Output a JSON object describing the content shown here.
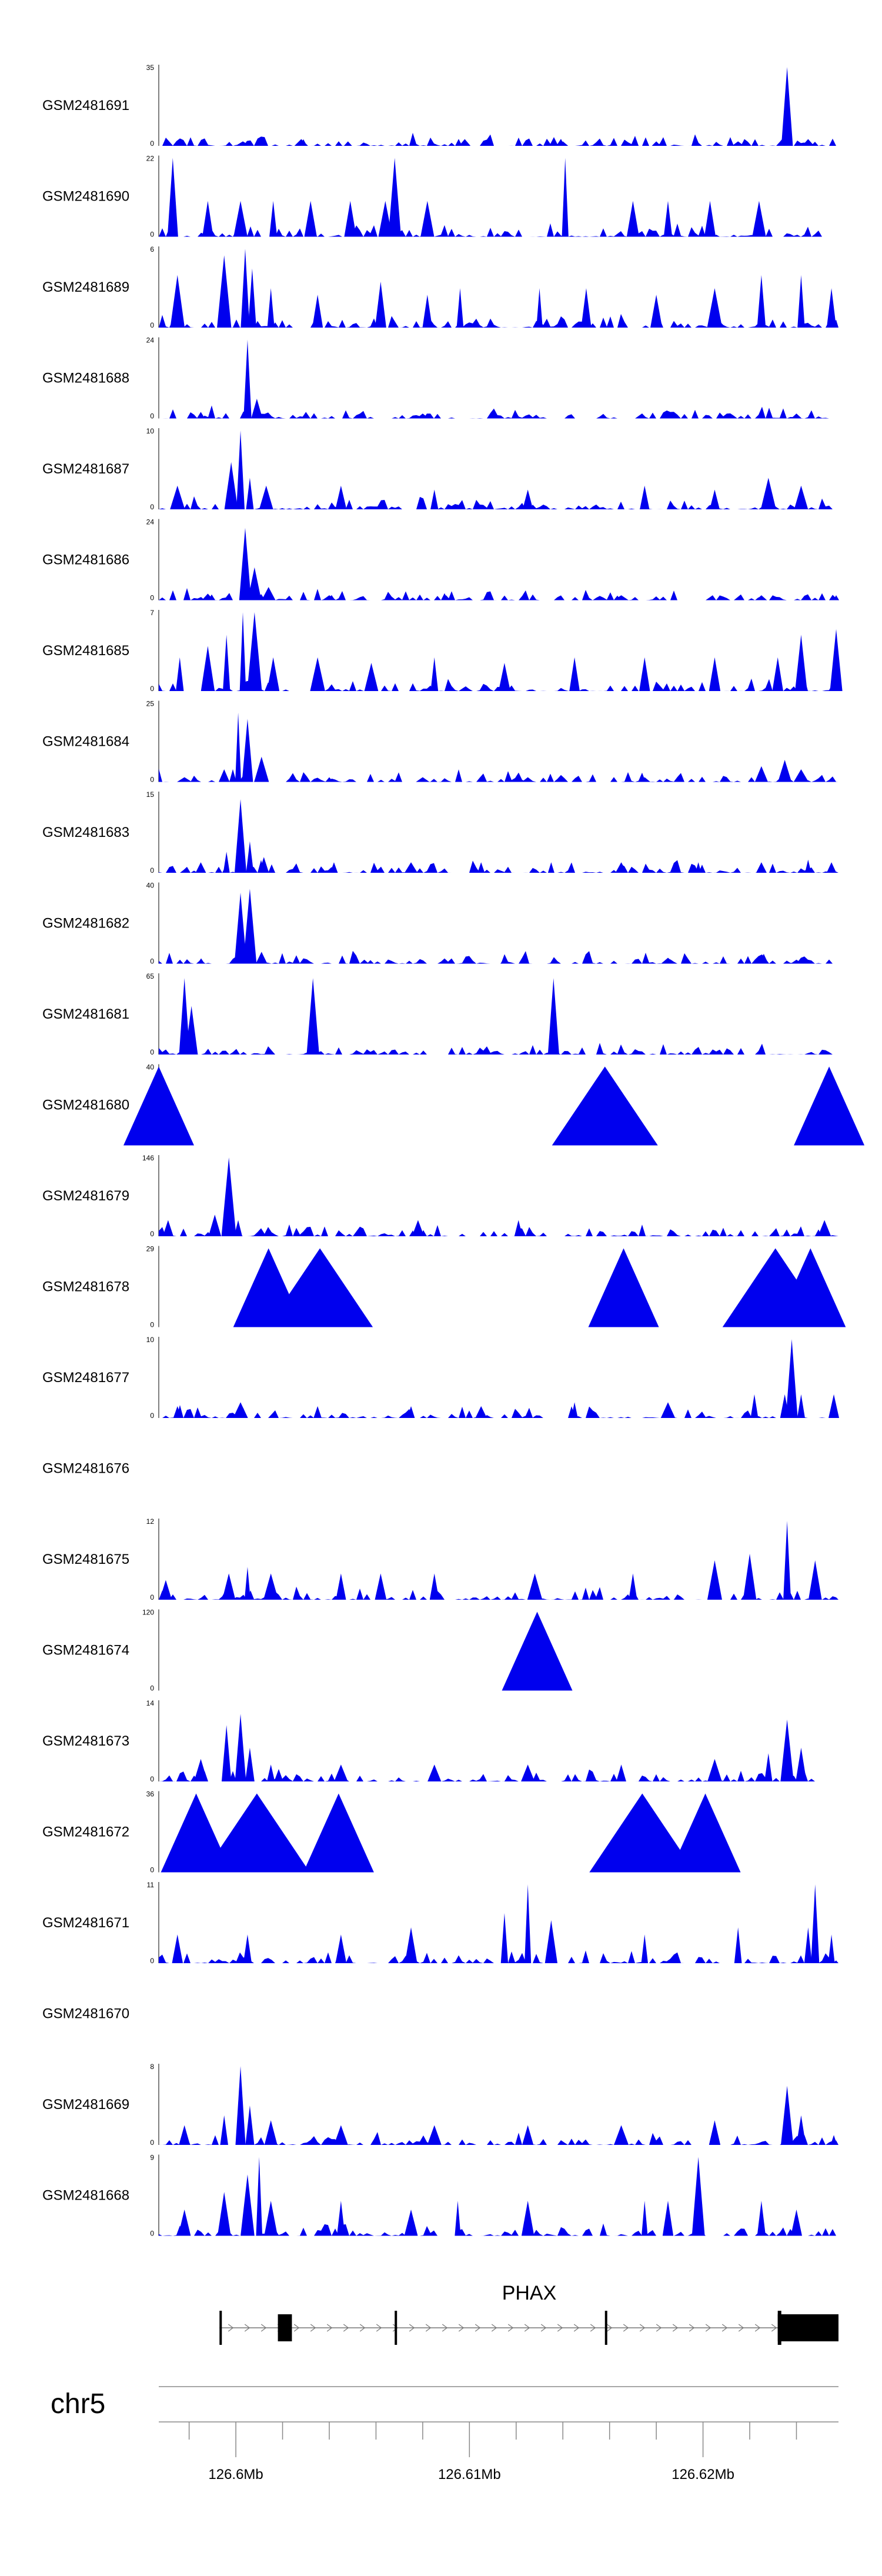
{
  "chart_data": {
    "type": "area",
    "title": "",
    "chromosome": "chr5",
    "xlabel": "",
    "ylabel": "",
    "xlim": [
      126.5967,
      126.6258
    ],
    "x_unit": "Mb",
    "x_ticks": [
      {
        "value": 126.6,
        "label": "126.6Mb"
      },
      {
        "value": 126.61,
        "label": "126.61Mb"
      },
      {
        "value": 126.62,
        "label": "126.62Mb"
      }
    ],
    "grid": false,
    "legend": "none",
    "fill_color": "#0000ee",
    "gene": {
      "name": "PHAX",
      "exons": [
        [
          126.5993,
          126.5994
        ],
        [
          126.6018,
          126.6024
        ],
        [
          126.6068,
          126.6069
        ],
        [
          126.6158,
          126.6159
        ],
        [
          126.6232,
          126.6258
        ]
      ]
    },
    "tracks": [
      {
        "name": "GSM2481691",
        "ymax_label": "35",
        "ymin_label": "0",
        "ymax": 35,
        "peaks": [
          [
            126.6003,
            2
          ],
          [
            126.6028,
            3
          ],
          [
            126.6048,
            2
          ],
          [
            126.6098,
            3
          ],
          [
            126.614,
            2
          ],
          [
            126.618,
            2
          ],
          [
            126.6215,
            2
          ],
          [
            126.6236,
            35
          ],
          [
            126.6245,
            3
          ]
        ]
      },
      {
        "name": "GSM2481690",
        "ymax_label": "22",
        "ymin_label": "0",
        "ymax": 22,
        "peaks": [
          [
            126.5973,
            22
          ],
          [
            126.5988,
            10
          ],
          [
            126.6002,
            10
          ],
          [
            126.6016,
            10
          ],
          [
            126.6032,
            10
          ],
          [
            126.6049,
            10
          ],
          [
            126.6064,
            10
          ],
          [
            126.6068,
            22
          ],
          [
            126.6082,
            10
          ],
          [
            126.6141,
            22
          ],
          [
            126.617,
            10
          ],
          [
            126.6185,
            10
          ],
          [
            126.6203,
            10
          ],
          [
            126.6224,
            10
          ]
        ]
      },
      {
        "name": "GSM2481689",
        "ymax_label": "6",
        "ymin_label": "0",
        "ymax": 6,
        "peaks": [
          [
            126.5975,
            4
          ],
          [
            126.5995,
            5.5
          ],
          [
            126.6004,
            6
          ],
          [
            126.6007,
            4.5
          ],
          [
            126.6015,
            3
          ],
          [
            126.6035,
            2.5
          ],
          [
            126.6062,
            3.5
          ],
          [
            126.6082,
            2.5
          ],
          [
            126.6096,
            3
          ],
          [
            126.613,
            3
          ],
          [
            126.615,
            3
          ],
          [
            126.618,
            2.5
          ],
          [
            126.6205,
            3
          ],
          [
            126.6225,
            4
          ],
          [
            126.6242,
            4
          ],
          [
            126.6255,
            3
          ]
        ]
      },
      {
        "name": "GSM2481688",
        "ymax_label": "24",
        "ymin_label": "0",
        "ymax": 24,
        "peaks": [
          [
            126.5985,
            2
          ],
          [
            126.6005,
            24
          ],
          [
            126.6009,
            6
          ],
          [
            126.603,
            2
          ],
          [
            126.608,
            1.5
          ],
          [
            126.612,
            1.5
          ],
          [
            126.6185,
            1.5
          ],
          [
            126.624,
            1.5
          ]
        ]
      },
      {
        "name": "GSM2481687",
        "ymax_label": "10",
        "ymin_label": "0",
        "ymax": 10,
        "peaks": [
          [
            126.5975,
            3
          ],
          [
            126.5998,
            6
          ],
          [
            126.6002,
            10
          ],
          [
            126.6006,
            4
          ],
          [
            126.6013,
            3
          ],
          [
            126.6045,
            3
          ],
          [
            126.6085,
            2.5
          ],
          [
            126.6125,
            2.5
          ],
          [
            126.6175,
            3
          ],
          [
            126.6205,
            2.5
          ],
          [
            126.6228,
            4
          ],
          [
            126.6242,
            3
          ]
        ]
      },
      {
        "name": "GSM2481686",
        "ymax_label": "24",
        "ymin_label": "0",
        "ymax": 24,
        "peaks": [
          [
            126.5988,
            2
          ],
          [
            126.6004,
            22
          ],
          [
            126.6008,
            10
          ],
          [
            126.6014,
            4
          ],
          [
            126.604,
            1.5
          ],
          [
            126.609,
            1.5
          ],
          [
            126.6165,
            1.5
          ],
          [
            126.6225,
            1.5
          ],
          [
            126.6257,
            1.5
          ]
        ]
      },
      {
        "name": "GSM2481685",
        "ymax_label": "7",
        "ymin_label": "0",
        "ymax": 7,
        "peaks": [
          [
            126.5976,
            3
          ],
          [
            126.5988,
            4
          ],
          [
            126.5996,
            5
          ],
          [
            126.6003,
            7
          ],
          [
            126.6008,
            7
          ],
          [
            126.6016,
            3
          ],
          [
            126.6035,
            3
          ],
          [
            126.6058,
            2.5
          ],
          [
            126.6085,
            3
          ],
          [
            126.6115,
            2.5
          ],
          [
            126.6145,
            3
          ],
          [
            126.6175,
            3
          ],
          [
            126.6205,
            3
          ],
          [
            126.6232,
            3
          ],
          [
            126.6242,
            5
          ],
          [
            126.6257,
            5.5
          ]
        ]
      },
      {
        "name": "GSM2481684",
        "ymax_label": "25",
        "ymin_label": "0",
        "ymax": 25,
        "peaks": [
          [
            126.5978,
            1.5
          ],
          [
            126.5995,
            4
          ],
          [
            126.6001,
            22
          ],
          [
            126.6005,
            20
          ],
          [
            126.6011,
            8
          ],
          [
            126.604,
            1.5
          ],
          [
            126.608,
            1.5
          ],
          [
            126.6125,
            1.5
          ],
          [
            126.6175,
            1.5
          ],
          [
            126.6225,
            5
          ],
          [
            126.6235,
            7
          ],
          [
            126.6242,
            4
          ]
        ]
      },
      {
        "name": "GSM2481683",
        "ymax_label": "15",
        "ymin_label": "0",
        "ymax": 15,
        "peaks": [
          [
            126.5985,
            2
          ],
          [
            126.5996,
            4
          ],
          [
            126.6002,
            14
          ],
          [
            126.6006,
            6
          ],
          [
            126.6012,
            3
          ],
          [
            126.6042,
            2
          ],
          [
            126.6075,
            2
          ],
          [
            126.6105,
            2
          ],
          [
            126.6135,
            2
          ],
          [
            126.6165,
            2
          ],
          [
            126.6198,
            2
          ],
          [
            126.6225,
            2
          ],
          [
            126.6245,
            2.5
          ],
          [
            126.6255,
            2
          ]
        ]
      },
      {
        "name": "GSM2481682",
        "ymax_label": "40",
        "ymin_label": "0",
        "ymax": 40,
        "peaks": [
          [
            126.5985,
            2
          ],
          [
            126.6002,
            36
          ],
          [
            126.6006,
            38
          ],
          [
            126.6011,
            6
          ],
          [
            126.6055,
            2
          ],
          [
            126.6115,
            3
          ],
          [
            126.6185,
            3
          ],
          [
            126.6226,
            5
          ],
          [
            126.624,
            2
          ]
        ]
      },
      {
        "name": "GSM2481681",
        "ymax_label": "65",
        "ymin_label": "0",
        "ymax": 65,
        "peaks": [
          [
            126.5978,
            63
          ],
          [
            126.5981,
            40
          ],
          [
            126.6033,
            63
          ],
          [
            126.6136,
            63
          ]
        ]
      },
      {
        "name": "GSM2481680",
        "ymax_label": "40",
        "ymin_label": "0",
        "ymax": 40,
        "peaks": [
          [
            126.5967,
            40
          ],
          [
            126.6158,
            40
          ],
          [
            126.6254,
            40
          ]
        ]
      },
      {
        "name": "GSM2481679",
        "ymax_label": "146",
        "ymin_label": "0",
        "ymax": 146,
        "peaks": [
          [
            126.5971,
            30
          ],
          [
            126.5991,
            40
          ],
          [
            126.5997,
            146
          ],
          [
            126.6001,
            30
          ],
          [
            126.6078,
            30
          ],
          [
            126.6121,
            30
          ],
          [
            126.6252,
            30
          ]
        ]
      },
      {
        "name": "GSM2481678",
        "ymax_label": "29",
        "ymin_label": "0",
        "ymax": 29,
        "peaks": [
          [
            126.6014,
            29
          ],
          [
            126.6036,
            29
          ],
          [
            126.6166,
            29
          ],
          [
            126.6231,
            29
          ],
          [
            126.6246,
            29
          ]
        ]
      },
      {
        "name": "GSM2481677",
        "ymax_label": "10",
        "ymin_label": "0",
        "ymax": 10,
        "peaks": [
          [
            126.5975,
            1.5
          ],
          [
            126.6002,
            2
          ],
          [
            126.6035,
            1.5
          ],
          [
            126.6075,
            1.5
          ],
          [
            126.6105,
            1.5
          ],
          [
            126.6145,
            2
          ],
          [
            126.6185,
            2
          ],
          [
            126.6222,
            3
          ],
          [
            126.6235,
            3
          ],
          [
            126.6238,
            10
          ],
          [
            126.6242,
            3
          ],
          [
            126.6256,
            3
          ]
        ]
      },
      {
        "name": "GSM2481676",
        "ymax_label": "",
        "ymin_label": "",
        "ymax": 1,
        "peaks": []
      },
      {
        "name": "GSM2481675",
        "ymax_label": "12",
        "ymin_label": "0",
        "ymax": 12,
        "peaks": [
          [
            126.597,
            3
          ],
          [
            126.5997,
            4
          ],
          [
            126.6005,
            5
          ],
          [
            126.6015,
            4
          ],
          [
            126.6045,
            4
          ],
          [
            126.6062,
            4
          ],
          [
            126.6085,
            4
          ],
          [
            126.6128,
            4
          ],
          [
            126.617,
            4
          ],
          [
            126.6205,
            6
          ],
          [
            126.622,
            7
          ],
          [
            126.6236,
            12
          ],
          [
            126.6248,
            6
          ]
        ]
      },
      {
        "name": "GSM2481674",
        "ymax_label": "120",
        "ymin_label": "0",
        "ymax": 120,
        "peaks": [
          [
            126.6129,
            120
          ]
        ]
      },
      {
        "name": "GSM2481673",
        "ymax_label": "14",
        "ymin_label": "0",
        "ymax": 14,
        "peaks": [
          [
            126.5985,
            4
          ],
          [
            126.5996,
            10
          ],
          [
            126.6002,
            12
          ],
          [
            126.6006,
            6
          ],
          [
            126.6015,
            3
          ],
          [
            126.6045,
            3
          ],
          [
            126.6085,
            3
          ],
          [
            126.6125,
            3
          ],
          [
            126.6165,
            3
          ],
          [
            126.6205,
            4
          ],
          [
            126.6228,
            5
          ],
          [
            126.6236,
            11
          ],
          [
            126.6242,
            6
          ]
        ]
      },
      {
        "name": "GSM2481672",
        "ymax_label": "36",
        "ymin_label": "0",
        "ymax": 36,
        "peaks": [
          [
            126.5983,
            36
          ],
          [
            126.6009,
            36
          ],
          [
            126.6044,
            36
          ],
          [
            126.6174,
            36
          ],
          [
            126.6201,
            36
          ]
        ]
      },
      {
        "name": "GSM2481671",
        "ymax_label": "11",
        "ymin_label": "0",
        "ymax": 11,
        "peaks": [
          [
            126.5975,
            4
          ],
          [
            126.6005,
            4
          ],
          [
            126.6045,
            4
          ],
          [
            126.6075,
            5
          ],
          [
            126.6115,
            7
          ],
          [
            126.6125,
            11
          ],
          [
            126.6135,
            6
          ],
          [
            126.6175,
            4
          ],
          [
            126.6215,
            5
          ],
          [
            126.6245,
            5
          ],
          [
            126.6248,
            11
          ],
          [
            126.6255,
            4
          ]
        ]
      },
      {
        "name": "GSM2481670",
        "ymax_label": "",
        "ymin_label": "",
        "ymax": 1,
        "peaks": []
      },
      {
        "name": "GSM2481669",
        "ymax_label": "8",
        "ymin_label": "0",
        "ymax": 8,
        "peaks": [
          [
            126.5978,
            2
          ],
          [
            126.5995,
            3
          ],
          [
            126.6002,
            8
          ],
          [
            126.6006,
            4
          ],
          [
            126.6015,
            2.5
          ],
          [
            126.6045,
            2
          ],
          [
            126.6085,
            2
          ],
          [
            126.6125,
            2
          ],
          [
            126.6165,
            2
          ],
          [
            126.6205,
            2.5
          ],
          [
            126.6236,
            6
          ],
          [
            126.6242,
            3
          ],
          [
            126.6256,
            1
          ]
        ]
      },
      {
        "name": "GSM2481668",
        "ymax_label": "9",
        "ymin_label": "0",
        "ymax": 9,
        "peaks": [
          [
            126.5978,
            3
          ],
          [
            126.5995,
            5
          ],
          [
            126.6005,
            7
          ],
          [
            126.601,
            9
          ],
          [
            126.6015,
            4
          ],
          [
            126.6045,
            4
          ],
          [
            126.6075,
            3
          ],
          [
            126.6095,
            4
          ],
          [
            126.6125,
            4
          ],
          [
            126.6175,
            4
          ],
          [
            126.6185,
            4
          ],
          [
            126.6198,
            9
          ],
          [
            126.6225,
            4
          ],
          [
            126.624,
            3
          ]
        ]
      }
    ]
  }
}
